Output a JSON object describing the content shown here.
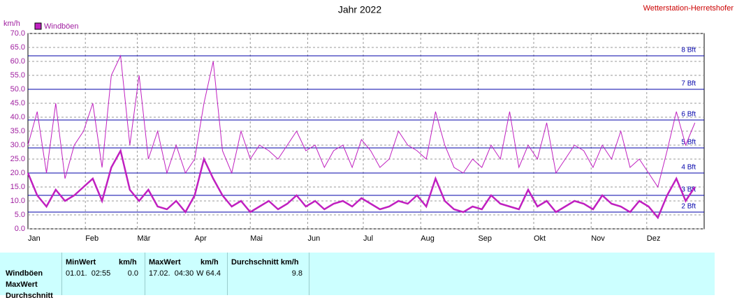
{
  "chart_data": {
    "type": "line",
    "title": "Jahr 2022",
    "source": "Wetterstation-Herretshofer",
    "ylabel": "km/h",
    "xlim": [
      0,
      365
    ],
    "xticks": [
      {
        "value": 0,
        "label": "Jan"
      },
      {
        "value": 31,
        "label": "Feb"
      },
      {
        "value": 59,
        "label": "Mär"
      },
      {
        "value": 90,
        "label": "Apr"
      },
      {
        "value": 120,
        "label": "Mai"
      },
      {
        "value": 151,
        "label": "Jun"
      },
      {
        "value": 181,
        "label": "Jul"
      },
      {
        "value": 212,
        "label": "Aug"
      },
      {
        "value": 243,
        "label": "Sep"
      },
      {
        "value": 273,
        "label": "Okt"
      },
      {
        "value": 304,
        "label": "Nov"
      },
      {
        "value": 334,
        "label": "Dez"
      }
    ],
    "ylim": [
      0,
      70
    ],
    "yticks": [
      {
        "value": 0,
        "label": "0.0"
      },
      {
        "value": 5,
        "label": "5.0"
      },
      {
        "value": 10,
        "label": "10.0"
      },
      {
        "value": 15,
        "label": "15.0"
      },
      {
        "value": 20,
        "label": "20.0"
      },
      {
        "value": 25,
        "label": "25.0"
      },
      {
        "value": 30,
        "label": "30.0"
      },
      {
        "value": 35,
        "label": "35.0"
      },
      {
        "value": 40,
        "label": "40.0"
      },
      {
        "value": 45,
        "label": "45.0"
      },
      {
        "value": 50,
        "label": "50.0"
      },
      {
        "value": 55,
        "label": "55.0"
      },
      {
        "value": 60,
        "label": "60.0"
      },
      {
        "value": 65,
        "label": "65.0"
      },
      {
        "value": 70,
        "label": "70.0"
      }
    ],
    "grid": true,
    "reference_lines": [
      {
        "value": 62,
        "label": "8 Bft"
      },
      {
        "value": 50,
        "label": "7 Bft"
      },
      {
        "value": 39,
        "label": "6 Bft"
      },
      {
        "value": 29,
        "label": "5 Bft"
      },
      {
        "value": 20,
        "label": "4 Bft"
      },
      {
        "value": 12,
        "label": "3 Bft"
      },
      {
        "value": 6,
        "label": "2 Bft"
      }
    ],
    "x": [
      0,
      5,
      10,
      15,
      20,
      25,
      30,
      35,
      40,
      45,
      50,
      55,
      60,
      65,
      70,
      75,
      80,
      85,
      90,
      95,
      100,
      105,
      110,
      115,
      120,
      125,
      130,
      135,
      140,
      145,
      150,
      155,
      160,
      165,
      170,
      175,
      180,
      185,
      190,
      195,
      200,
      205,
      210,
      215,
      220,
      225,
      230,
      235,
      240,
      245,
      250,
      255,
      260,
      265,
      270,
      275,
      280,
      285,
      290,
      295,
      300,
      305,
      310,
      315,
      320,
      325,
      330,
      335,
      340,
      345,
      350,
      355,
      360
    ],
    "series": [
      {
        "name": "Windböen",
        "color": "#c020c0",
        "values": [
          20,
          12,
          8,
          14,
          10,
          12,
          15,
          18,
          10,
          22,
          28,
          14,
          10,
          14,
          8,
          7,
          10,
          6,
          12,
          25,
          18,
          12,
          8,
          10,
          6,
          8,
          10,
          7,
          9,
          12,
          8,
          10,
          7,
          9,
          10,
          8,
          11,
          9,
          7,
          8,
          10,
          9,
          12,
          8,
          18,
          10,
          7,
          6,
          8,
          7,
          12,
          9,
          8,
          7,
          14,
          8,
          10,
          6,
          8,
          10,
          9,
          7,
          12,
          9,
          8,
          6,
          10,
          8,
          4,
          12,
          18,
          10,
          15
        ]
      },
      {
        "name": "MaxWert",
        "color": "#c020c0",
        "values": [
          30,
          42,
          20,
          45,
          18,
          30,
          35,
          45,
          22,
          55,
          62,
          30,
          55,
          25,
          35,
          20,
          30,
          20,
          25,
          45,
          60,
          28,
          20,
          35,
          25,
          30,
          28,
          25,
          30,
          35,
          28,
          30,
          22,
          28,
          30,
          22,
          32,
          28,
          22,
          25,
          35,
          30,
          28,
          25,
          42,
          30,
          22,
          20,
          25,
          22,
          30,
          25,
          42,
          22,
          30,
          25,
          38,
          20,
          25,
          30,
          28,
          22,
          30,
          25,
          35,
          22,
          25,
          20,
          15,
          28,
          42,
          30,
          38
        ]
      }
    ]
  },
  "table": {
    "header": [
      "MinWert",
      "km/h",
      "MaxWert",
      "km/h",
      "Durchschnitt km/h"
    ],
    "row_labels": [
      "Windböen",
      "MaxWert",
      "Durchschnitt"
    ],
    "rows": [
      [
        "01.01.  02:55",
        "0.0",
        "17.02.  04:30",
        "W 64.4",
        "9.8"
      ]
    ]
  }
}
